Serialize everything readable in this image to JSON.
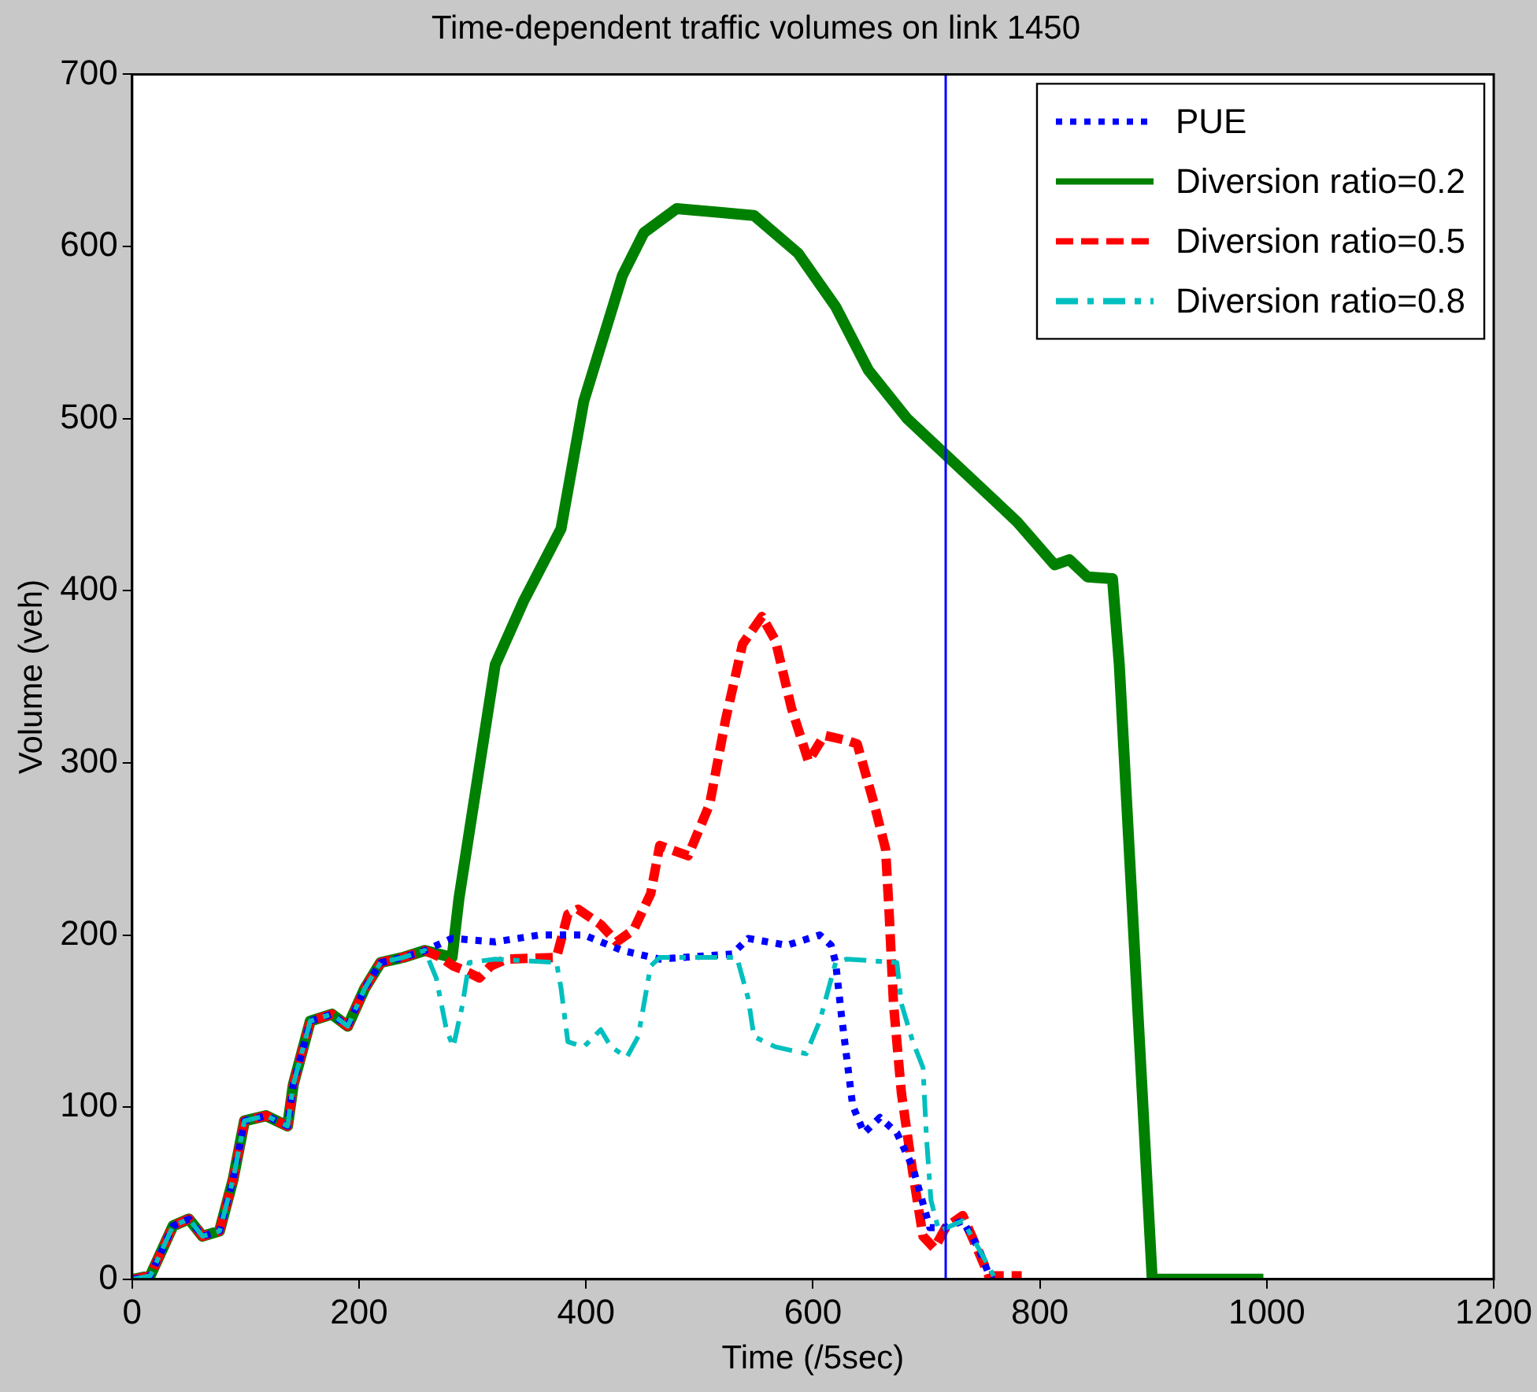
{
  "chart_data": {
    "type": "line",
    "title": "Time-dependent traffic volumes on link 1450",
    "xlabel": "Time (/5sec)",
    "ylabel": "Volume (veh)",
    "xlim": [
      0,
      1200
    ],
    "xticks": [
      0,
      200,
      400,
      600,
      800,
      1000,
      1200
    ],
    "ylim": [
      0,
      700
    ],
    "yticks": [
      0,
      100,
      200,
      300,
      400,
      500,
      600,
      700
    ],
    "legend": "top right",
    "grid": false,
    "ref_lines": [
      {
        "axis": "x",
        "value": 717,
        "color": "#0000ff",
        "line_style": "solid"
      }
    ],
    "series": [
      {
        "name": "PUE",
        "color": "#0000ff",
        "line_style": "dotted",
        "x": [
          1,
          16,
          36,
          50,
          62,
          77,
          89,
          99,
          118,
          137,
          142,
          157,
          176,
          190,
          205,
          219,
          239,
          258,
          282,
          320,
          359,
          398,
          432,
          465,
          529,
          543,
          577,
          606,
          616,
          620,
          625,
          635,
          645,
          659,
          674,
          688,
          703,
          717,
          732,
          746,
          755,
          758
        ],
        "values": [
          0,
          2,
          31,
          35,
          25,
          28,
          58,
          92,
          95,
          89,
          113,
          150,
          154,
          147,
          169,
          184,
          187,
          191,
          198,
          196,
          200,
          200,
          191,
          186,
          189,
          198,
          194,
          200,
          194,
          184,
          154,
          101,
          85,
          94,
          85,
          65,
          30,
          30,
          34,
          18,
          3,
          0
        ]
      },
      {
        "name": "Diversion ratio=0.2",
        "color": "#008000",
        "line_style": "solid",
        "x": [
          1,
          16,
          36,
          50,
          62,
          77,
          89,
          99,
          118,
          137,
          142,
          157,
          176,
          190,
          205,
          219,
          239,
          258,
          282,
          288,
          320,
          345,
          378,
          398,
          432,
          451,
          480,
          514,
          548,
          587,
          620,
          649,
          683,
          717,
          780,
          813,
          826,
          842,
          864,
          870,
          899,
          997
        ],
        "values": [
          0,
          2,
          31,
          35,
          25,
          28,
          58,
          92,
          95,
          89,
          113,
          150,
          154,
          147,
          169,
          184,
          187,
          191,
          187,
          221,
          357,
          394,
          436,
          510,
          583,
          608,
          622,
          620,
          618,
          596,
          565,
          528,
          500,
          479,
          440,
          415,
          418,
          408,
          407,
          357,
          0,
          0
        ]
      },
      {
        "name": "Diversion ratio=0.5",
        "color": "#ff0000",
        "line_style": "dashed",
        "x": [
          1,
          16,
          36,
          50,
          62,
          77,
          89,
          99,
          118,
          137,
          142,
          157,
          176,
          190,
          205,
          219,
          239,
          258,
          272,
          283,
          291,
          306,
          316,
          330,
          374,
          384,
          393,
          413,
          427,
          442,
          457,
          465,
          490,
          509,
          523,
          538,
          555,
          567,
          581,
          596,
          610,
          630,
          639,
          654,
          664,
          667,
          671,
          678,
          688,
          697,
          707,
          717,
          732,
          746,
          755,
          784
        ],
        "values": [
          0,
          2,
          31,
          35,
          25,
          28,
          58,
          92,
          95,
          89,
          113,
          150,
          154,
          147,
          169,
          184,
          187,
          191,
          187,
          182,
          180,
          175,
          182,
          186,
          187,
          212,
          215,
          206,
          196,
          203,
          224,
          252,
          246,
          276,
          325,
          369,
          385,
          371,
          332,
          301,
          316,
          313,
          311,
          276,
          250,
          215,
          160,
          108,
          62,
          25,
          18,
          30,
          37,
          16,
          2,
          2
        ]
      },
      {
        "name": "Diversion ratio=0.8",
        "color": "#00bfbf",
        "line_style": "dashdot",
        "x": [
          1,
          16,
          36,
          50,
          62,
          77,
          89,
          99,
          118,
          137,
          142,
          157,
          176,
          190,
          205,
          219,
          239,
          258,
          268,
          277,
          283,
          291,
          297,
          320,
          374,
          378,
          384,
          398,
          413,
          422,
          436,
          446,
          457,
          465,
          533,
          543,
          548,
          567,
          594,
          606,
          620,
          630,
          674,
          678,
          688,
          697,
          700,
          704,
          711,
          732,
          746,
          761
        ],
        "values": [
          0,
          2,
          31,
          35,
          25,
          28,
          58,
          92,
          95,
          89,
          113,
          150,
          154,
          147,
          169,
          184,
          187,
          191,
          175,
          145,
          135,
          159,
          184,
          186,
          184,
          169,
          138,
          135,
          145,
          135,
          129,
          141,
          182,
          187,
          187,
          163,
          141,
          135,
          131,
          150,
          184,
          186,
          184,
          160,
          138,
          123,
          83,
          46,
          28,
          34,
          18,
          0
        ]
      }
    ]
  }
}
